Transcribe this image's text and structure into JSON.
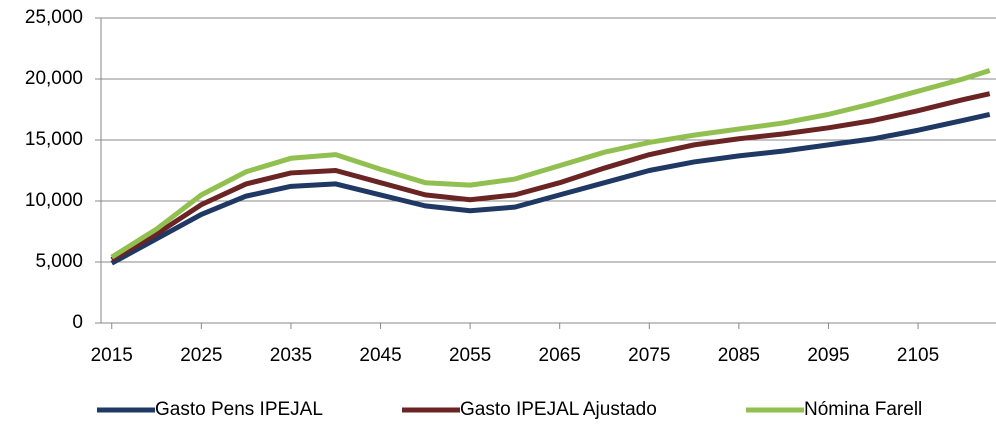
{
  "chart_data": {
    "type": "line",
    "x": [
      2015,
      2020,
      2025,
      2030,
      2035,
      2040,
      2045,
      2050,
      2055,
      2060,
      2065,
      2070,
      2075,
      2080,
      2085,
      2090,
      2095,
      2100,
      2105,
      2110,
      2113
    ],
    "series": [
      {
        "name": "Gasto Pens  IPEJAL",
        "color": "#1f3864",
        "values": [
          4900,
          6900,
          8900,
          10400,
          11200,
          11400,
          10500,
          9600,
          9200,
          9500,
          10500,
          11500,
          12500,
          13200,
          13700,
          14100,
          14600,
          15100,
          15800,
          16600,
          17100
        ]
      },
      {
        "name": "Gasto IPEJAL Ajustado",
        "color": "#6b2424",
        "values": [
          5200,
          7300,
          9700,
          11400,
          12300,
          12500,
          11500,
          10500,
          10100,
          10500,
          11500,
          12700,
          13800,
          14600,
          15100,
          15500,
          16000,
          16600,
          17400,
          18300,
          18800
        ]
      },
      {
        "name": "Nómina Farell",
        "color": "#92c050",
        "values": [
          5400,
          7700,
          10500,
          12400,
          13500,
          13800,
          12600,
          11500,
          11300,
          11800,
          12900,
          14000,
          14800,
          15400,
          15900,
          16400,
          17100,
          18000,
          19000,
          20000,
          20700
        ]
      }
    ],
    "xlim": [
      2013.8,
      2113.7
    ],
    "xticks": [
      2015,
      2025,
      2035,
      2045,
      2055,
      2065,
      2075,
      2085,
      2095,
      2105
    ],
    "ylim": [
      0,
      25000
    ],
    "yticks": [
      0,
      {
        "value": 5000,
        "label": "5,000"
      },
      {
        "value": 10000,
        "label": "10,000"
      },
      {
        "value": 15000,
        "label": "15,000"
      },
      {
        "value": 20000,
        "label": "20,000"
      },
      {
        "value": 25000,
        "label": "25,000"
      }
    ],
    "grid": true,
    "legend": "bottom"
  }
}
